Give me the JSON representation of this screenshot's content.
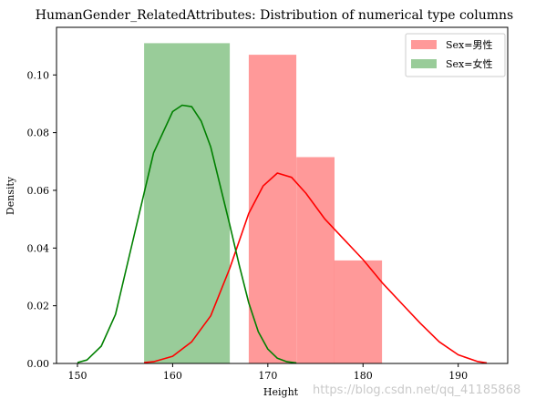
{
  "chart_data": {
    "type": "bar",
    "title": "HumanGender_RelatedAttributes: Distribution of numerical type columns",
    "xlabel": "Height",
    "ylabel": "Density",
    "xlim": [
      147.8,
      195.2
    ],
    "ylim": [
      0,
      0.1165
    ],
    "x_ticks": [
      150,
      160,
      170,
      180,
      190
    ],
    "y_ticks": [
      0.0,
      0.02,
      0.04,
      0.06,
      0.08,
      0.1
    ],
    "y_tick_labels": [
      "0.00",
      "0.02",
      "0.04",
      "0.06",
      "0.08",
      "0.10"
    ],
    "grid": false,
    "legend_position": "top-right",
    "series": [
      {
        "name": "Sex=男性",
        "color": "#ff0000",
        "bar_alpha": 0.4,
        "histogram": [
          {
            "x0": 168,
            "x1": 173,
            "density": 0.107
          },
          {
            "x0": 173,
            "x1": 177,
            "density": 0.0715
          },
          {
            "x0": 177,
            "x1": 182,
            "density": 0.0357
          }
        ],
        "kde": {
          "x": [
            157,
            158,
            160,
            162,
            164,
            166,
            168,
            169.5,
            171,
            172.5,
            174,
            176,
            178,
            180,
            182,
            184,
            186,
            188,
            190,
            192,
            193
          ],
          "y": [
            0.0003,
            0.0006,
            0.0025,
            0.0075,
            0.0165,
            0.033,
            0.052,
            0.0615,
            0.066,
            0.0645,
            0.059,
            0.05,
            0.043,
            0.036,
            0.028,
            0.021,
            0.014,
            0.0075,
            0.003,
            0.0007,
            0.0002
          ]
        }
      },
      {
        "name": "Sex=女性",
        "color": "#008000",
        "bar_alpha": 0.4,
        "histogram": [
          {
            "x0": 157,
            "x1": 166,
            "density": 0.111
          }
        ],
        "kde": {
          "x": [
            150,
            151,
            152.5,
            154,
            156,
            158,
            160,
            161,
            162,
            163,
            164,
            166,
            167,
            168,
            169,
            170,
            171,
            172,
            173
          ],
          "y": [
            0.0003,
            0.0012,
            0.006,
            0.017,
            0.045,
            0.073,
            0.0873,
            0.0895,
            0.089,
            0.084,
            0.075,
            0.048,
            0.034,
            0.021,
            0.011,
            0.005,
            0.0018,
            0.0006,
            0.0002
          ]
        }
      }
    ]
  },
  "watermark": "https://blog.csdn.net/qq_41185868"
}
